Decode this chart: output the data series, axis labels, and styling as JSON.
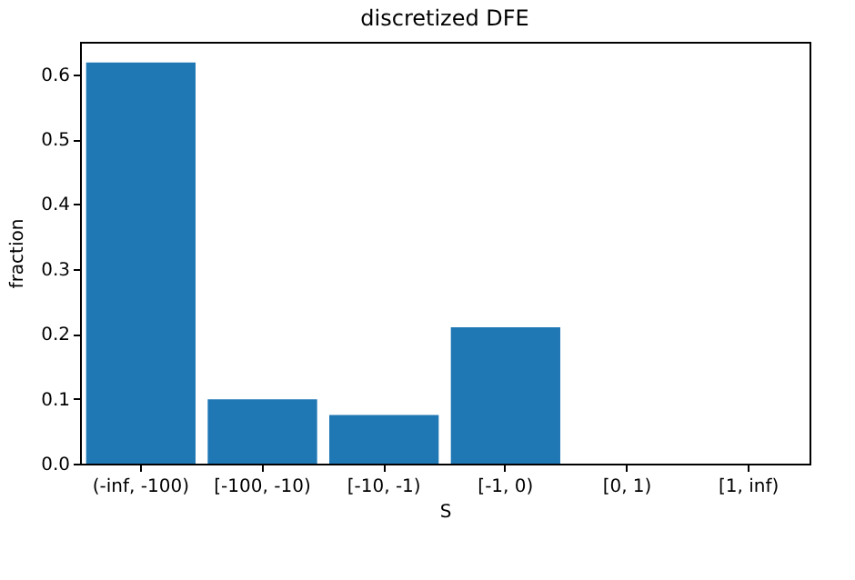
{
  "chart_data": {
    "type": "bar",
    "title": "discretized DFE",
    "xlabel": "S",
    "ylabel": "fraction",
    "categories": [
      "(-inf, -100)",
      "[-100, -10)",
      "[-10, -1)",
      "[-1, 0)",
      "[0, 1)",
      "[1, inf)"
    ],
    "values": [
      0.618,
      0.099,
      0.075,
      0.21,
      0,
      0
    ],
    "color": "#1f77b4",
    "ylim": [
      0,
      0.65
    ],
    "yticks": [
      {
        "value": 0,
        "label": "0.0"
      },
      0.1,
      0.2,
      0.3,
      0.4,
      0.5,
      0.6
    ],
    "grid": false,
    "legend": false
  }
}
